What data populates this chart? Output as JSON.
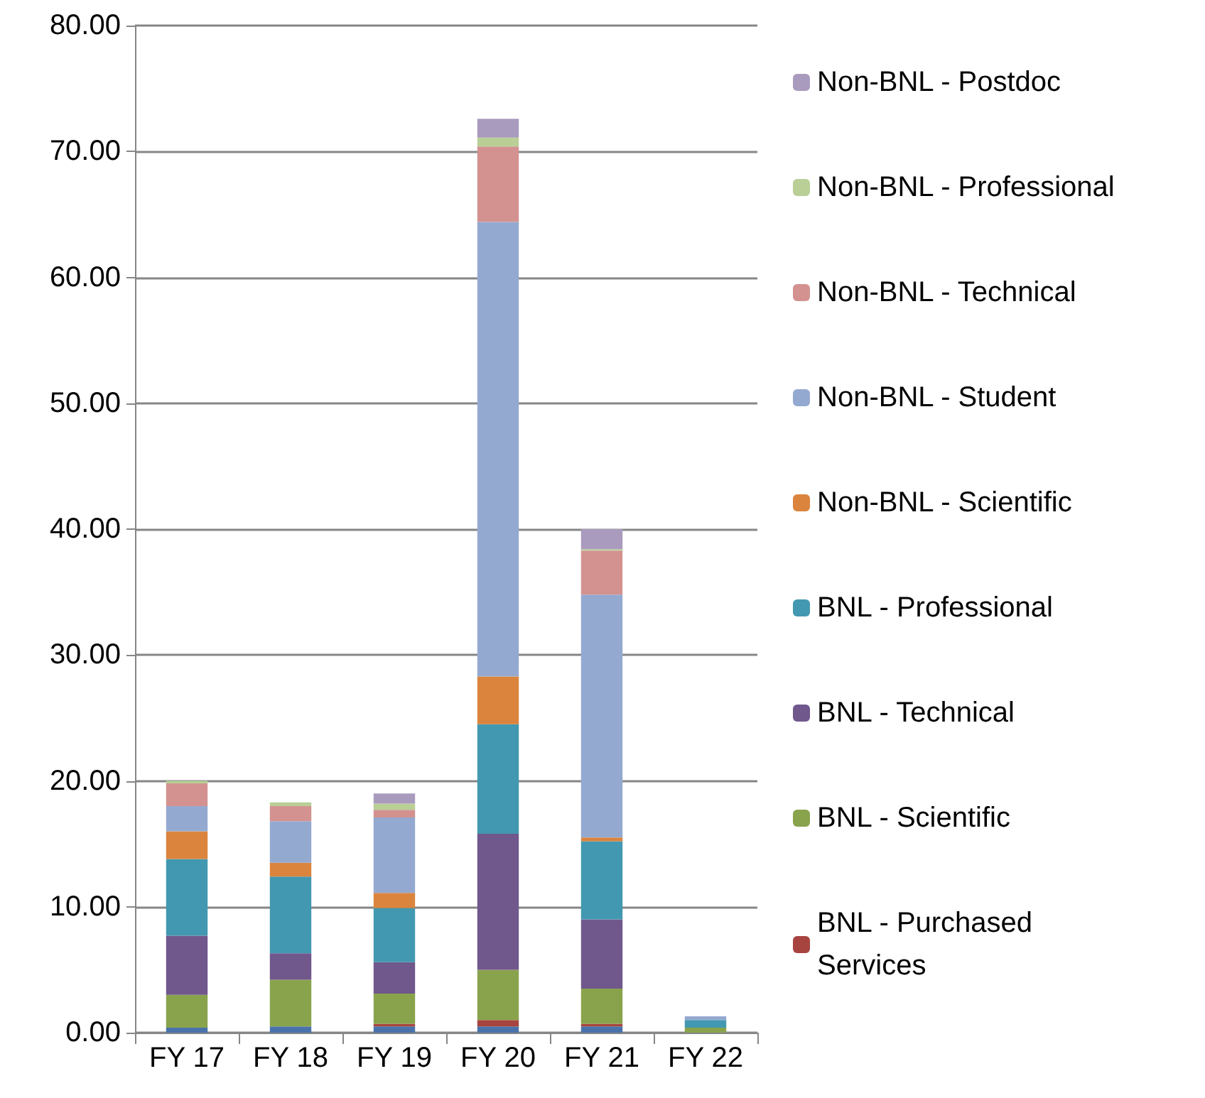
{
  "chart_data": {
    "type": "bar",
    "stacked": true,
    "categories": [
      "FY 17",
      "FY 18",
      "FY 19",
      "FY 20",
      "FY 21",
      "FY 22"
    ],
    "series": [
      {
        "color": "#4a72aa",
        "values": [
          0.4,
          0.5,
          0.5,
          0.5,
          0.5,
          0
        ]
      },
      {
        "name": "BNL - Purchased Services",
        "color": "#a84440",
        "values": [
          0,
          0,
          0.2,
          0.5,
          0.2,
          0
        ]
      },
      {
        "name": "BNL - Scientific",
        "color": "#89a34c",
        "values": [
          2.6,
          3.7,
          2.4,
          4.0,
          2.8,
          0.4
        ]
      },
      {
        "name": "BNL - Technical",
        "color": "#70578c",
        "values": [
          4.7,
          2.1,
          2.5,
          10.8,
          5.5,
          0
        ]
      },
      {
        "name": "BNL - Professional",
        "color": "#4298b0",
        "values": [
          6.1,
          6.1,
          4.3,
          8.7,
          6.2,
          0.6
        ]
      },
      {
        "name": "Non-BNL - Scientific",
        "color": "#db843d",
        "values": [
          2.2,
          1.1,
          1.2,
          3.8,
          0.3,
          0
        ]
      },
      {
        "name": "Non-BNL - Student",
        "color": "#94a9d0",
        "values": [
          2.0,
          3.3,
          6.0,
          36.1,
          19.3,
          0.3
        ]
      },
      {
        "name": "Non-BNL - Technical",
        "color": "#d39290",
        "values": [
          1.8,
          1.2,
          0.6,
          6.0,
          3.5,
          0
        ]
      },
      {
        "name": "Non-BNL - Professional",
        "color": "#b9cf96",
        "values": [
          0.2,
          0.3,
          0.5,
          0.7,
          0.1,
          0
        ]
      },
      {
        "name": "Non-BNL - Postdoc",
        "color": "#a99bbd",
        "values": [
          0,
          0,
          0.8,
          1.5,
          1.6,
          0
        ]
      }
    ],
    "ylim": [
      0,
      80
    ],
    "yticks": [
      {
        "value": 0,
        "label": "0.00"
      },
      {
        "value": 10,
        "label": "10.00"
      },
      {
        "value": 20,
        "label": "20.00"
      },
      {
        "value": 30,
        "label": "30.00"
      },
      {
        "value": 40,
        "label": "40.00"
      },
      {
        "value": 50,
        "label": "50.00"
      },
      {
        "value": 60,
        "label": "60.00"
      },
      {
        "value": 70,
        "label": "70.00"
      },
      {
        "value": 80,
        "label": "80.00"
      }
    ],
    "grid": "y",
    "legend": "right"
  }
}
